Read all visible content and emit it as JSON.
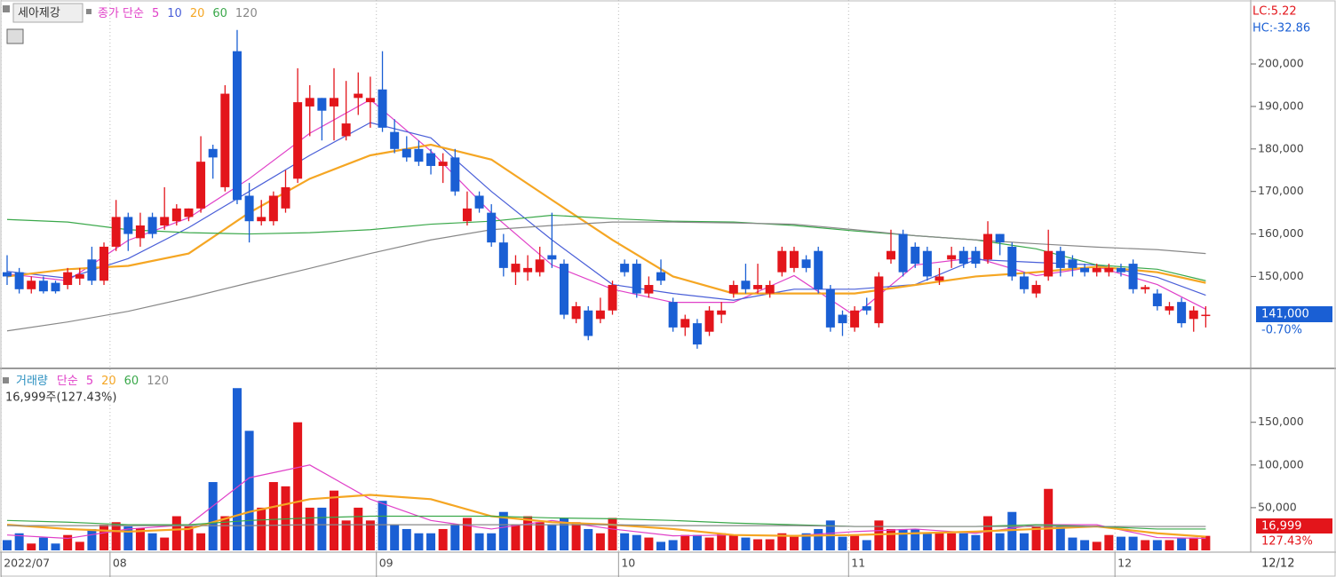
{
  "header": {
    "stock_name": "세아제강",
    "ma_label": "종가 단순",
    "lc": "LC:5.22",
    "hc": "HC:-32.86",
    "volume_name": "거래량",
    "volume_ma_label": "단순",
    "volume_info": "16,999주(127.43%)",
    "price_marker": "141,000",
    "price_change": "-0.70%",
    "volume_marker": "16,999",
    "volume_ratio": "127.43%",
    "last_date": "12/12"
  },
  "chart_data": [
    {
      "type": "candlestick",
      "up_color": "#e3151b",
      "down_color": "#1a5fd4",
      "ylim": [
        129000,
        214000
      ],
      "yticks": [
        {
          "value": 150000,
          "label": "150,000"
        },
        {
          "value": 160000,
          "label": "160,000"
        },
        {
          "value": 170000,
          "label": "170,000"
        },
        {
          "value": 180000,
          "label": "180,000"
        },
        {
          "value": 190000,
          "label": "190,000"
        },
        {
          "value": 200000,
          "label": "200,000"
        }
      ],
      "xticks": [
        {
          "value": 0,
          "label": "2022/07"
        },
        {
          "value": 9,
          "label": "08"
        },
        {
          "value": 31,
          "label": "09"
        },
        {
          "value": 51,
          "label": "10"
        },
        {
          "value": 70,
          "label": "11"
        },
        {
          "value": 92,
          "label": "12"
        }
      ],
      "open": [
        151000,
        151000,
        147000,
        149000,
        148500,
        148000,
        149500,
        154000,
        149000,
        157000,
        164000,
        159000,
        164000,
        162000,
        163000,
        164000,
        166000,
        180000,
        171000,
        203000,
        169000,
        163000,
        163000,
        166000,
        173000,
        190000,
        192000,
        190000,
        183000,
        192000,
        191000,
        194000,
        184000,
        180000,
        180000,
        179000,
        176000,
        178000,
        163000,
        169000,
        165000,
        158000,
        151000,
        151000,
        151000,
        155000,
        153000,
        140000,
        142000,
        140000,
        142000,
        153000,
        153000,
        146000,
        151000,
        144000,
        138000,
        139000,
        137000,
        141000,
        146000,
        149000,
        147000,
        146000,
        151000,
        152000,
        154000,
        156000,
        147000,
        141000,
        138000,
        143000,
        139000,
        154000,
        160000,
        157000,
        156000,
        149000,
        154000,
        156000,
        156000,
        154000,
        160000,
        157000,
        150000,
        146000,
        150000,
        156000,
        154000,
        152000,
        151000,
        151000,
        152000,
        153000,
        147000,
        146000,
        142000,
        144000,
        140000,
        141000
      ],
      "high": [
        155000,
        152000,
        150000,
        150000,
        149000,
        152000,
        152000,
        157000,
        158000,
        168000,
        165000,
        165000,
        165000,
        171000,
        167000,
        166000,
        183000,
        181000,
        195000,
        208000,
        172000,
        168000,
        170000,
        175000,
        199000,
        195000,
        192000,
        199000,
        196000,
        198000,
        197000,
        203000,
        187000,
        183000,
        182000,
        180000,
        179000,
        180000,
        170000,
        170000,
        167000,
        160000,
        155000,
        155000,
        157000,
        165000,
        154000,
        144000,
        143000,
        145000,
        149000,
        154000,
        154000,
        150000,
        154000,
        145000,
        141000,
        140000,
        143000,
        144000,
        149000,
        153000,
        153000,
        149000,
        157000,
        157000,
        155000,
        157000,
        148000,
        142000,
        143000,
        145000,
        151000,
        161000,
        161000,
        158000,
        157000,
        152000,
        157000,
        157000,
        157000,
        163000,
        160000,
        158000,
        151000,
        149000,
        161000,
        157000,
        155000,
        153000,
        153000,
        153000,
        153000,
        154000,
        148000,
        147000,
        144000,
        145000,
        143000,
        143000
      ],
      "low": [
        148000,
        146000,
        146000,
        146000,
        146000,
        147000,
        148000,
        148000,
        148000,
        156000,
        156000,
        157000,
        159000,
        161000,
        162000,
        163000,
        165000,
        173000,
        170000,
        167000,
        158000,
        162000,
        162000,
        165000,
        172000,
        183000,
        182000,
        182000,
        182000,
        188000,
        185000,
        184000,
        179000,
        177000,
        176000,
        174000,
        172000,
        169000,
        162000,
        165000,
        157000,
        150000,
        148000,
        149000,
        150000,
        152000,
        140000,
        139000,
        135000,
        139000,
        141000,
        150000,
        145000,
        145000,
        148000,
        137000,
        136000,
        133000,
        136000,
        139000,
        145000,
        146000,
        146000,
        145000,
        150000,
        151000,
        151000,
        146000,
        137000,
        136000,
        137000,
        141000,
        138000,
        153000,
        150000,
        152000,
        149000,
        148000,
        152000,
        152000,
        152000,
        153000,
        155000,
        149000,
        146000,
        145000,
        149000,
        150000,
        150000,
        150000,
        150000,
        150000,
        150000,
        146000,
        146000,
        142000,
        141000,
        138000,
        137000,
        138000
      ],
      "close": [
        150000,
        147000,
        149000,
        146500,
        146500,
        151000,
        150500,
        149000,
        157000,
        164000,
        160000,
        162000,
        160000,
        164000,
        166000,
        166000,
        177000,
        178000,
        193000,
        168000,
        163000,
        164000,
        169000,
        171000,
        191000,
        192000,
        189000,
        192000,
        186000,
        193000,
        192000,
        185000,
        180000,
        178000,
        177000,
        176000,
        177000,
        170000,
        166000,
        166000,
        158000,
        152000,
        153000,
        152000,
        154000,
        154000,
        141000,
        143000,
        136000,
        142000,
        148000,
        151000,
        146000,
        148000,
        149000,
        138000,
        140000,
        134000,
        142000,
        142000,
        148000,
        147000,
        148000,
        148000,
        156000,
        156000,
        152000,
        147000,
        138000,
        139000,
        142000,
        142000,
        150000,
        156000,
        151000,
        153000,
        150000,
        150000,
        155000,
        153000,
        153000,
        160000,
        158000,
        150000,
        147000,
        148000,
        156000,
        152000,
        152000,
        151000,
        152000,
        152000,
        151000,
        147000,
        147500,
        143000,
        143000,
        139000,
        142000,
        141000
      ],
      "ma": [
        {
          "name": "5",
          "color": "#e040c8",
          "x": [
            0,
            5,
            10,
            15,
            20,
            25,
            30,
            35,
            40,
            45,
            50,
            55,
            60,
            65,
            70,
            75,
            80,
            85,
            90,
            95,
            99
          ],
          "values": [
            150600,
            149000,
            158500,
            163800,
            173000,
            183700,
            191600,
            179500,
            164900,
            152700,
            147000,
            143900,
            143900,
            150200,
            140800,
            152700,
            154400,
            150200,
            152300,
            148100,
            142300
          ]
        },
        {
          "name": "10",
          "color": "#4a5fd8",
          "x": [
            0,
            5,
            10,
            15,
            20,
            25,
            30,
            35,
            40,
            45,
            50,
            55,
            60,
            65,
            70,
            75,
            80,
            85,
            90,
            95,
            99
          ],
          "values": [
            151200,
            149600,
            154200,
            161500,
            170000,
            178500,
            186200,
            182600,
            170000,
            158600,
            148100,
            146000,
            144400,
            147000,
            147000,
            148100,
            154000,
            153300,
            152700,
            149800,
            145600
          ]
        },
        {
          "name": "20",
          "color": "#f5a623",
          "x": [
            0,
            5,
            10,
            15,
            20,
            25,
            30,
            35,
            40,
            45,
            50,
            55,
            60,
            65,
            70,
            75,
            80,
            85,
            90,
            95,
            99
          ],
          "values": [
            150000,
            151700,
            152500,
            155400,
            165000,
            173000,
            178500,
            181000,
            177500,
            168000,
            158600,
            150000,
            146000,
            146000,
            146000,
            148000,
            150000,
            151000,
            152300,
            151000,
            148500
          ]
        },
        {
          "name": "60",
          "color": "#3aa84a",
          "x": [
            0,
            5,
            10,
            15,
            20,
            25,
            30,
            35,
            40,
            45,
            50,
            55,
            60,
            65,
            70,
            75,
            80,
            85,
            90,
            95,
            99
          ],
          "values": [
            163400,
            162800,
            161000,
            160300,
            160000,
            160300,
            161000,
            162300,
            163000,
            164400,
            163600,
            163000,
            162800,
            162000,
            160700,
            159600,
            158600,
            156500,
            152700,
            151700,
            149000
          ]
        },
        {
          "name": "120",
          "color": "#888888",
          "x": [
            0,
            5,
            10,
            15,
            20,
            25,
            30,
            35,
            40,
            45,
            50,
            55,
            60,
            65,
            70,
            75,
            80,
            85,
            90,
            95,
            99
          ],
          "values": [
            137200,
            139300,
            141800,
            145000,
            148500,
            151900,
            155400,
            158600,
            161000,
            162000,
            162800,
            162800,
            162600,
            162300,
            161000,
            159600,
            158600,
            157700,
            156900,
            156300,
            155400
          ]
        }
      ]
    },
    {
      "type": "bar",
      "ylim": [
        0,
        210000
      ],
      "yticks": [
        {
          "value": 50000,
          "label": "50,000"
        },
        {
          "value": 100000,
          "label": "100,000"
        },
        {
          "value": 150000,
          "label": "150,000"
        }
      ],
      "values": [
        12000,
        20000,
        8000,
        15000,
        8000,
        18000,
        10000,
        25000,
        30000,
        33000,
        28000,
        26000,
        20000,
        15000,
        40000,
        28000,
        20000,
        80000,
        40000,
        190000,
        140000,
        50000,
        80000,
        75000,
        150000,
        50000,
        50000,
        70000,
        35000,
        50000,
        35000,
        58000,
        30000,
        25000,
        20000,
        20000,
        25000,
        30000,
        38000,
        20000,
        20000,
        45000,
        30000,
        40000,
        33000,
        30000,
        38000,
        33000,
        25000,
        20000,
        38000,
        20000,
        18000,
        15000,
        10000,
        12000,
        18000,
        18000,
        15000,
        20000,
        18000,
        15000,
        13000,
        13000,
        20000,
        16000,
        20000,
        25000,
        35000,
        16000,
        17000,
        12000,
        35000,
        25000,
        25000,
        25000,
        20000,
        20000,
        20000,
        20000,
        18000,
        40000,
        20000,
        45000,
        20000,
        28000,
        72000,
        28000,
        15000,
        12000,
        10000,
        18000,
        16000,
        16000,
        12000,
        12000,
        12000,
        14000,
        15000,
        16999
      ],
      "ma": [
        {
          "name": "5",
          "color": "#e040c8",
          "x": [
            0,
            5,
            10,
            15,
            20,
            25,
            30,
            35,
            40,
            45,
            50,
            55,
            60,
            65,
            70,
            75,
            80,
            85,
            90,
            95,
            99
          ],
          "values": [
            18000,
            14000,
            25000,
            30000,
            85000,
            100000,
            60000,
            35000,
            25000,
            35000,
            25000,
            17000,
            18000,
            17000,
            22000,
            25000,
            20000,
            30000,
            30000,
            15000,
            14000
          ]
        },
        {
          "name": "20",
          "color": "#f5a623",
          "x": [
            0,
            5,
            10,
            15,
            20,
            25,
            30,
            35,
            40,
            45,
            50,
            55,
            60,
            65,
            70,
            75,
            80,
            85,
            90,
            95,
            99
          ],
          "values": [
            30000,
            25000,
            22000,
            25000,
            45000,
            60000,
            65000,
            60000,
            40000,
            33000,
            30000,
            25000,
            18000,
            17000,
            18000,
            20000,
            22000,
            25000,
            28000,
            20000,
            16000
          ]
        },
        {
          "name": "60",
          "color": "#3aa84a",
          "x": [
            0,
            5,
            10,
            15,
            20,
            25,
            30,
            35,
            40,
            45,
            50,
            55,
            60,
            65,
            70,
            75,
            80,
            85,
            90,
            95,
            99
          ],
          "values": [
            35000,
            33000,
            30000,
            30000,
            35000,
            38000,
            40000,
            40000,
            40000,
            38000,
            37000,
            35000,
            32000,
            30000,
            28000,
            28000,
            28000,
            30000,
            28000,
            25000,
            25000
          ]
        },
        {
          "name": "120",
          "color": "#888888",
          "x": [
            0,
            5,
            10,
            15,
            20,
            25,
            30,
            35,
            40,
            45,
            50,
            55,
            60,
            65,
            70,
            75,
            80,
            85,
            90,
            95,
            99
          ],
          "values": [
            29000,
            29000,
            29000,
            29000,
            29000,
            30000,
            30000,
            30000,
            30000,
            30000,
            30000,
            29000,
            29000,
            29000,
            28000,
            28000,
            28000,
            28000,
            28000,
            28000,
            28000
          ]
        }
      ]
    }
  ]
}
